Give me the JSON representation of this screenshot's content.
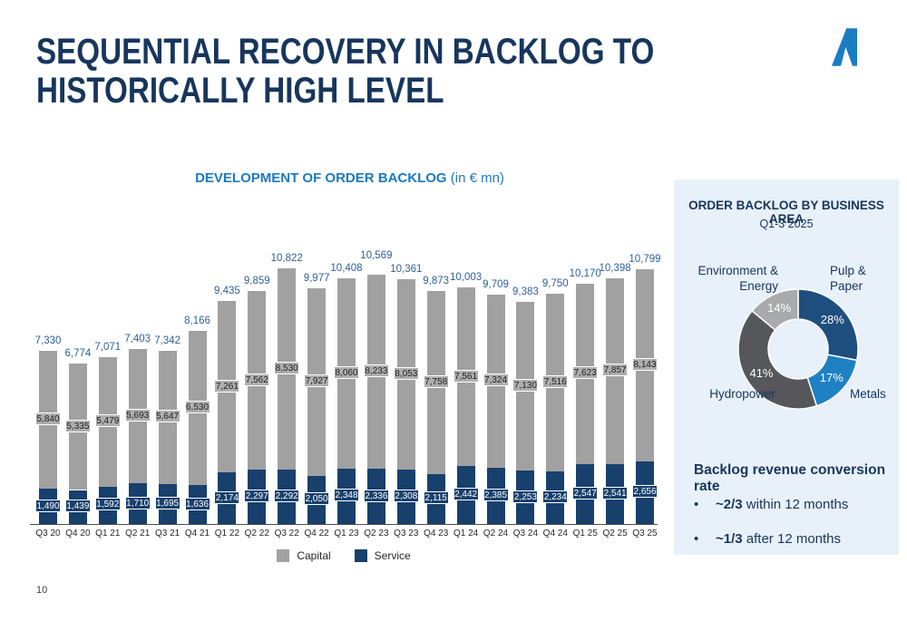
{
  "slide": {
    "title_line1": "SEQUENTIAL RECOVERY IN BACKLOG TO",
    "title_line2": "HISTORICALLY HIGH LEVEL",
    "page_number": "10"
  },
  "colors": {
    "title_navy": "#17365d",
    "heading_blue": "#1b7ac0",
    "total_label_blue": "#2d5f9b",
    "logo_blue": "#1a7dc2",
    "panel_bg": "#e8f1f9"
  },
  "chart_data": [
    {
      "type": "bar",
      "stacked": true,
      "title": "DEVELOPMENT OF ORDER BACKLOG",
      "unit_suffix": " (in € mn)",
      "grid": false,
      "legend_position": "bottom",
      "categories": [
        "Q3 20",
        "Q4 20",
        "Q1 21",
        "Q2 21",
        "Q3 21",
        "Q4 21",
        "Q1 22",
        "Q2 22",
        "Q3 22",
        "Q4 22",
        "Q1 23",
        "Q2 23",
        "Q3 23",
        "Q4 23",
        "Q1 24",
        "Q2 24",
        "Q3 24",
        "Q4 24",
        "Q1 25",
        "Q2 25",
        "Q3 25"
      ],
      "series": [
        {
          "name": "Capital",
          "color": "#a1a1a1",
          "label_box_color": "#aeaeae",
          "values": [
            5840,
            5335,
            5479,
            5693,
            5647,
            6530,
            7261,
            7562,
            8530,
            7927,
            8060,
            8233,
            8053,
            7758,
            7561,
            7324,
            7130,
            7516,
            7623,
            7857,
            8143
          ]
        },
        {
          "name": "Service",
          "color": "#17406d",
          "label_box_color": "#17406d",
          "values": [
            1490,
            1439,
            1592,
            1710,
            1695,
            1636,
            2174,
            2297,
            2292,
            2050,
            2348,
            2336,
            2308,
            2115,
            2442,
            2385,
            2253,
            2234,
            2547,
            2541,
            2656
          ]
        }
      ],
      "totals": [
        7330,
        6774,
        7071,
        7403,
        7342,
        8166,
        9435,
        9859,
        10822,
        9977,
        10408,
        10569,
        10361,
        9873,
        10003,
        9709,
        9383,
        9750,
        10170,
        10398,
        10799
      ],
      "total_label_extra_raise": {
        "11": 10
      },
      "ylim": [
        0,
        10822
      ]
    },
    {
      "type": "pie",
      "donut": true,
      "title": "ORDER BACKLOG BY BUSINESS AREA",
      "subtitle": "Q1-3 2025",
      "segments": [
        {
          "label": "Pulp & Paper",
          "value": 28,
          "pct_text": "28%",
          "color": "#1d4e7e"
        },
        {
          "label": "Metals",
          "value": 17,
          "pct_text": "17%",
          "color": "#1e81c4"
        },
        {
          "label": "Hydropower",
          "value": 41,
          "pct_text": "41%",
          "color": "#56575b"
        },
        {
          "label": "Environment & Energy",
          "value": 14,
          "pct_text": "14%",
          "color": "#a9aaac"
        }
      ]
    }
  ],
  "side_panel": {
    "conversion": {
      "heading": "Backlog revenue conversion rate",
      "bullets": [
        {
          "bold": "~2/3",
          "rest": " within 12 months"
        },
        {
          "bold": "~1/3",
          "rest": " after 12 months"
        }
      ]
    }
  }
}
